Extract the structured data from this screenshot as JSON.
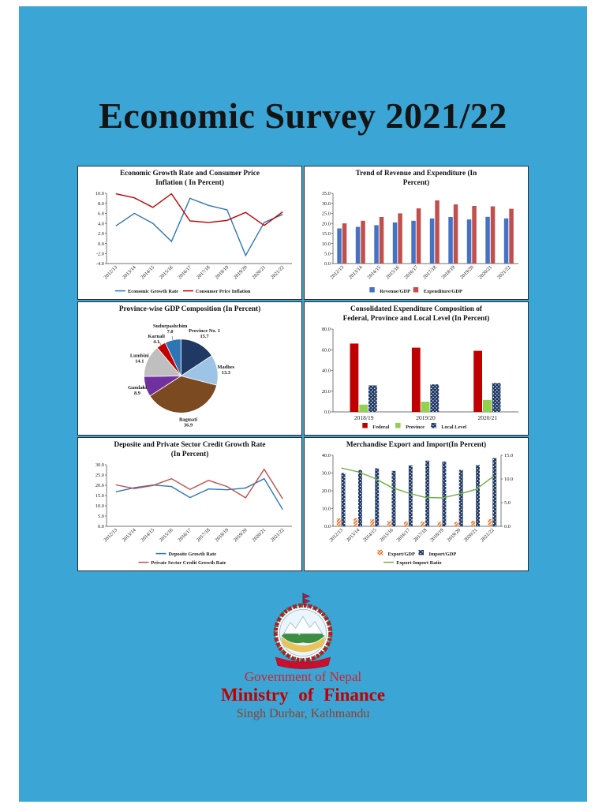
{
  "title": "Economic Survey 2021/22",
  "footer": {
    "government": "Government of Nepal",
    "ministry": "Ministry of  Finance",
    "address": "Singh Durbar, Kathmandu"
  },
  "colors": {
    "page_bg": "#3BA6D5",
    "government_red": "#D2232A",
    "ministry_red": "#C00000",
    "address_red": "#8D3F2F"
  },
  "chart_data": [
    {
      "type": "line",
      "title": "Economic Growth Rate and Consumer Price\nInflation ( In Percent)",
      "categories": [
        "2012/13",
        "2013/14",
        "2014/15",
        "2015/16",
        "2016/17",
        "2017/18",
        "2018/19",
        "2019/20",
        "2020/21",
        "2021/22"
      ],
      "series": [
        {
          "name": "Economic Growth Rate",
          "kind": "line",
          "color": "#2E75B6",
          "values": [
            3.5,
            6.0,
            4.0,
            0.4,
            9.0,
            7.6,
            6.7,
            -2.4,
            4.2,
            5.8
          ]
        },
        {
          "name": "Consumer Price  Inflation",
          "kind": "line",
          "color": "#C00000",
          "values": [
            9.9,
            9.1,
            7.2,
            9.9,
            4.5,
            4.2,
            4.6,
            6.2,
            3.6,
            6.3
          ]
        }
      ],
      "ylim": [
        -4,
        10
      ],
      "ytick": 2,
      "layout": {
        "legend_layout": [
          [
            0,
            1
          ]
        ]
      }
    },
    {
      "type": "bar",
      "title": "Trend of Revenue and Expenditure (In\nPercent)",
      "categories": [
        "2012/13",
        "2013/14",
        "2014/15",
        "2015/16",
        "2016/17",
        "2017/18",
        "2018/19",
        "2019/20",
        "2020/21",
        "2021/22"
      ],
      "series": [
        {
          "name": "Revenue/GDP",
          "kind": "bar",
          "color": "#4472C4",
          "values": [
            17.5,
            18.3,
            19.1,
            20.5,
            21.3,
            22.5,
            23.2,
            22.0,
            23.3,
            22.5
          ]
        },
        {
          "name": "Expenditure/GDP",
          "kind": "bar",
          "color": "#C0504D",
          "values": [
            20.0,
            21.3,
            23.2,
            25.0,
            27.5,
            31.5,
            29.5,
            28.7,
            28.5,
            27.3
          ]
        }
      ],
      "ylim": [
        0,
        35
      ],
      "ytick": 5,
      "layout": {
        "legend_layout": [
          [
            0,
            1
          ]
        ]
      }
    },
    {
      "type": "pie",
      "title": "Province-wise GDP Composition (In Percent)",
      "slices": [
        {
          "label": "Province No. 1",
          "value": 15.7,
          "color": "#1F3864"
        },
        {
          "label": "Madhes",
          "value": 13.3,
          "color": "#9DC3E6"
        },
        {
          "label": "Bagmati",
          "value": 36.9,
          "color": "#7B4A21"
        },
        {
          "label": "Gandaki",
          "value": 8.9,
          "color": "#7030A0"
        },
        {
          "label": "Lumbini",
          "value": 14.1,
          "color": "#BFBFBF"
        },
        {
          "label": "Karnali",
          "value": 4.1,
          "color": "#C00000"
        },
        {
          "label": "Sudurpashchim",
          "value": 7.0,
          "color": "#2E75B6"
        }
      ]
    },
    {
      "type": "bar",
      "title": "Consolidated Expenditure Composition of\nFederal, Province and Local Level (In Percent)",
      "categories": [
        "2018/19",
        "2019/20",
        "2020/21"
      ],
      "series": [
        {
          "name": "Federal",
          "kind": "bar",
          "color": "#C00000",
          "values": [
            66.0,
            62.0,
            59.0
          ]
        },
        {
          "name": "Province",
          "kind": "bar",
          "color": "#92D050",
          "values": [
            7.0,
            9.8,
            11.5
          ]
        },
        {
          "name": "Local Level",
          "kind": "bar",
          "color": "#1F3864",
          "pattern": "dots",
          "values": [
            25.5,
            26.6,
            27.8
          ]
        }
      ],
      "ylim": [
        0,
        80
      ],
      "ytick": 20,
      "layout": {
        "rotate": false,
        "cluster": 0.45,
        "legend_layout": [
          [
            0,
            1,
            2
          ]
        ]
      }
    },
    {
      "type": "line",
      "title": "Deposite and Private Sector Credit Growth Rate\n(In Percent)",
      "categories": [
        "2012/13",
        "2013/14",
        "2014/15",
        "2015/16",
        "2016/17",
        "2017/18",
        "2018/19",
        "2019/20",
        "2020/21",
        "2021/22"
      ],
      "series": [
        {
          "name": "Deposite Growth Rate",
          "kind": "line",
          "color": "#2E75B6",
          "values": [
            16.8,
            18.8,
            20.1,
            19.4,
            14.0,
            18.2,
            17.8,
            18.7,
            23.2,
            8.2
          ]
        },
        {
          "name": "Private Sector Credit Growth Rate",
          "kind": "line",
          "color": "#C0504D",
          "values": [
            20.2,
            18.4,
            19.9,
            23.2,
            18.0,
            22.4,
            19.4,
            13.9,
            27.8,
            13.4
          ]
        }
      ],
      "ylim": [
        0,
        30
      ],
      "ytick": 5,
      "layout": {
        "legend_layout": [
          [
            0
          ],
          [
            1
          ]
        ]
      }
    },
    {
      "type": "combo",
      "title": "Merchandise Export and Import(In Percent)",
      "categories": [
        "2012/13",
        "2013/14",
        "2014/15",
        "2015/16",
        "2016/17",
        "2017/18",
        "2018/19",
        "2019/20",
        "2020/21",
        "2021/22"
      ],
      "series": [
        {
          "name": "Export/GDP",
          "kind": "bar",
          "color": "#ED7D31",
          "pattern": "hatch",
          "values": [
            4.5,
            4.5,
            3.9,
            3.0,
            2.7,
            2.6,
            2.5,
            2.5,
            3.1,
            4.1
          ]
        },
        {
          "name": "Import/GDP",
          "kind": "bar",
          "color": "#1F3864",
          "pattern": "dots",
          "values": [
            30.0,
            31.7,
            32.7,
            31.2,
            34.3,
            37.0,
            36.5,
            31.8,
            34.5,
            38.5
          ]
        },
        {
          "name": "Export-Import Ratio",
          "kind": "line",
          "color": "#70AD47",
          "axis": "y2",
          "values": [
            12.3,
            11.5,
            10.1,
            8.2,
            7.0,
            6.1,
            6.0,
            6.8,
            7.8,
            10.4
          ]
        }
      ],
      "ylim": [
        0,
        40
      ],
      "ytick": 10,
      "y2lim": [
        0,
        15
      ],
      "y2tick": 5,
      "layout": {
        "mr": 32,
        "legend_layout": [
          [
            0,
            1
          ],
          [
            2
          ]
        ]
      }
    }
  ]
}
